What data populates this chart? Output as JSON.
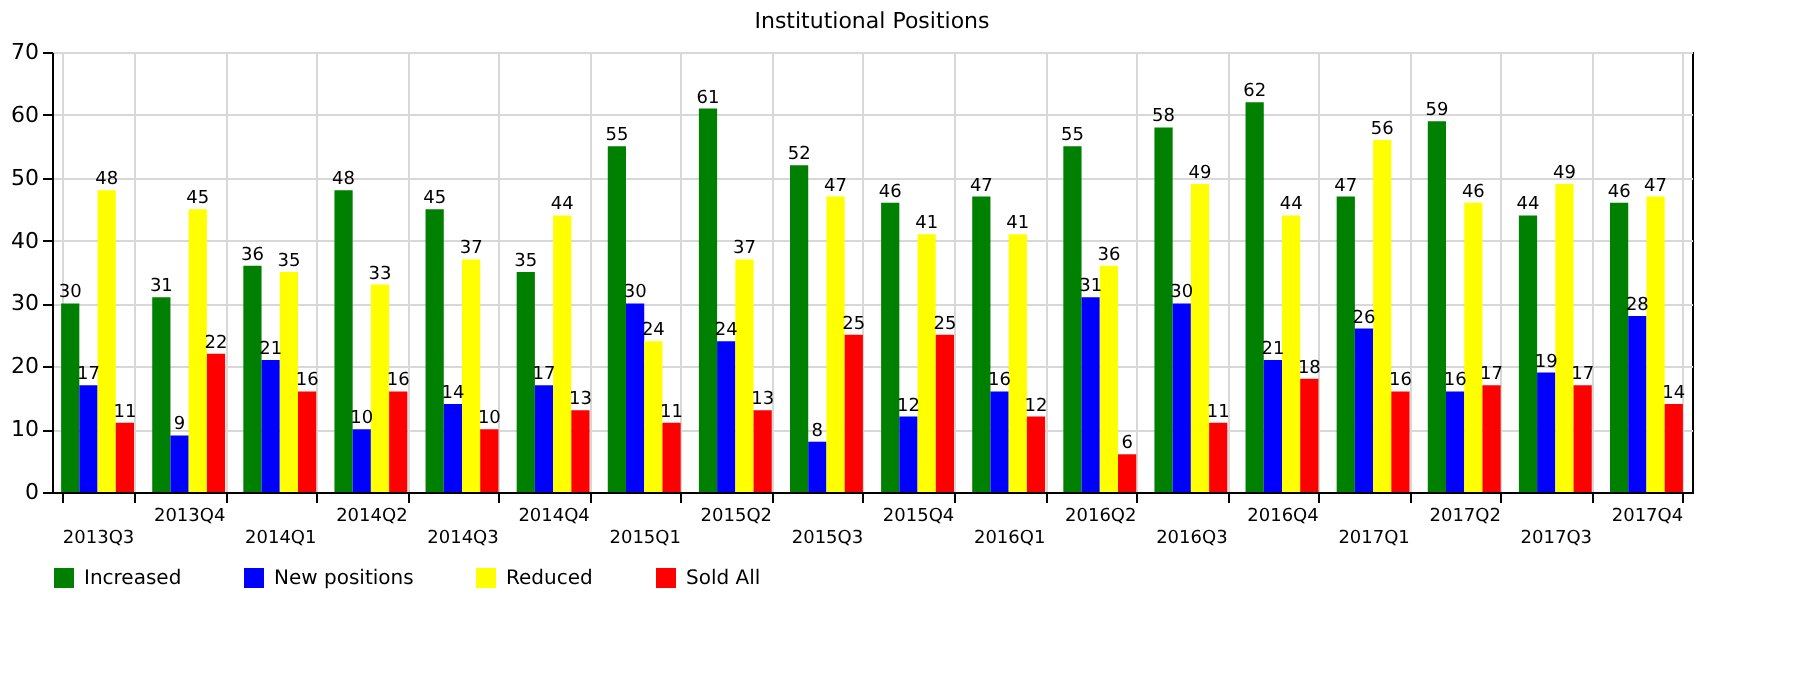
{
  "chart_data": {
    "type": "bar",
    "title": "Institutional Positions",
    "categories": [
      "2013Q3",
      "2013Q4",
      "2014Q1",
      "2014Q2",
      "2014Q3",
      "2014Q4",
      "2015Q1",
      "2015Q2",
      "2015Q3",
      "2015Q4",
      "2016Q1",
      "2016Q2",
      "2016Q3",
      "2016Q4",
      "2017Q1",
      "2017Q2",
      "2017Q3",
      "2017Q4"
    ],
    "series": [
      {
        "name": "Increased",
        "color": "#008000",
        "values": [
          30,
          31,
          36,
          48,
          45,
          35,
          55,
          61,
          52,
          46,
          47,
          55,
          58,
          62,
          47,
          59,
          44,
          46
        ]
      },
      {
        "name": "New positions",
        "color": "#0000ff",
        "values": [
          17,
          9,
          21,
          10,
          14,
          17,
          30,
          24,
          8,
          12,
          16,
          31,
          30,
          21,
          26,
          16,
          19,
          28
        ]
      },
      {
        "name": "Reduced",
        "color": "#ffff00",
        "values": [
          48,
          45,
          35,
          33,
          37,
          44,
          24,
          37,
          47,
          41,
          41,
          36,
          49,
          44,
          56,
          46,
          49,
          47
        ]
      },
      {
        "name": "Sold All",
        "color": "#ff0000",
        "values": [
          11,
          22,
          16,
          16,
          10,
          13,
          11,
          13,
          25,
          25,
          12,
          6,
          11,
          18,
          16,
          17,
          17,
          14
        ]
      }
    ],
    "ylim": [
      0,
      70
    ],
    "yticks": [
      0,
      10,
      20,
      30,
      40,
      50,
      60,
      70
    ],
    "grid": true,
    "legend": "bottom left",
    "data_labels": true
  }
}
